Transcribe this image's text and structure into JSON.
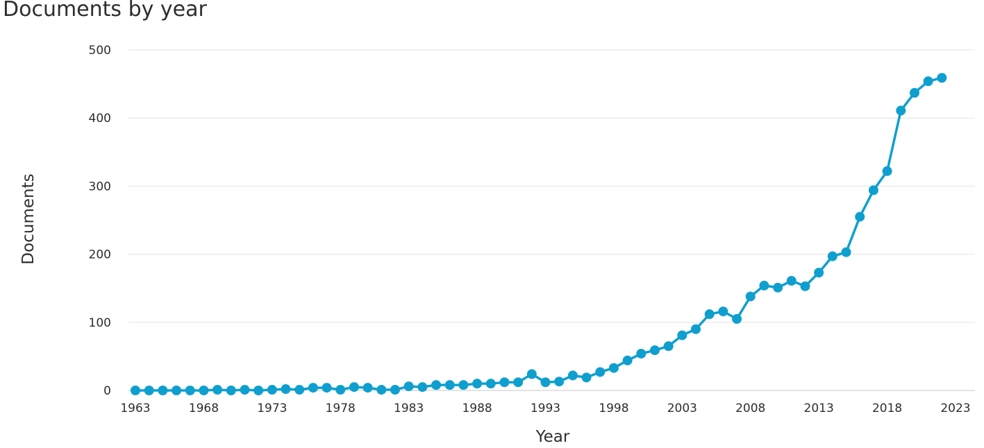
{
  "chart_data": {
    "type": "line",
    "title": "Documents by year",
    "xlabel": "Year",
    "ylabel": "Documents",
    "xlim": [
      1963,
      2023
    ],
    "ylim": [
      0,
      500
    ],
    "yticks": [
      0,
      100,
      200,
      300,
      400,
      500
    ],
    "xticks": [
      1963,
      1968,
      1973,
      1978,
      1983,
      1988,
      1993,
      1998,
      2003,
      2008,
      2013,
      2018,
      2023
    ],
    "grid": "horizontal",
    "line_color": "#0f9fcf",
    "series": [
      {
        "x": [
          1963,
          1964,
          1965,
          1966,
          1967,
          1968,
          1969,
          1970,
          1971,
          1972,
          1973,
          1974,
          1975,
          1976,
          1977,
          1978,
          1979,
          1980,
          1981,
          1982,
          1983,
          1984,
          1985,
          1986,
          1987,
          1988,
          1989,
          1990,
          1991,
          1992,
          1993,
          1994,
          1995,
          1996,
          1997,
          1998,
          1999,
          2000,
          2001,
          2002,
          2003,
          2004,
          2005,
          2006,
          2007,
          2008,
          2009,
          2010,
          2011,
          2012,
          2013,
          2014,
          2015,
          2016,
          2017,
          2018,
          2019,
          2020,
          2021,
          2022
        ],
        "values": [
          0,
          0,
          0,
          0,
          0,
          0,
          1,
          0,
          1,
          0,
          1,
          2,
          1,
          4,
          4,
          1,
          5,
          4,
          1,
          1,
          6,
          5,
          8,
          8,
          8,
          10,
          10,
          12,
          12,
          24,
          12,
          13,
          22,
          19,
          27,
          33,
          44,
          54,
          59,
          65,
          81,
          90,
          112,
          116,
          105,
          138,
          154,
          151,
          161,
          153,
          173,
          197,
          203,
          255,
          294,
          322,
          411,
          437,
          454,
          459
        ]
      }
    ]
  }
}
